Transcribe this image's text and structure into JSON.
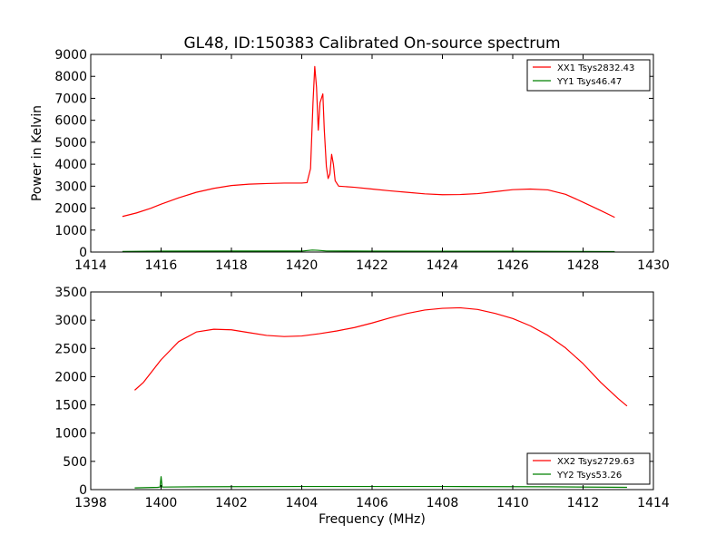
{
  "chart_data": [
    {
      "type": "line",
      "title": "GL48, ID:150383 Calibrated On-source spectrum",
      "xlabel": "",
      "ylabel": "Power in Kelvin",
      "xlim": [
        1414,
        1430
      ],
      "ylim": [
        0,
        9000
      ],
      "xticks": [
        "1414",
        "1416",
        "1418",
        "1420",
        "1422",
        "1424",
        "1426",
        "1428",
        "1430"
      ],
      "yticks": [
        "0",
        "1000",
        "2000",
        "3000",
        "4000",
        "5000",
        "6000",
        "7000",
        "8000",
        "9000"
      ],
      "legend_position": "top-right",
      "series": [
        {
          "name": "XX1 Tsys2832.43",
          "color": "#ff0000",
          "points": [
            [
              1414.9,
              1620
            ],
            [
              1415.3,
              1780
            ],
            [
              1415.7,
              1990
            ],
            [
              1416.0,
              2180
            ],
            [
              1416.5,
              2470
            ],
            [
              1417.0,
              2720
            ],
            [
              1417.5,
              2900
            ],
            [
              1418.0,
              3030
            ],
            [
              1418.5,
              3090
            ],
            [
              1419.0,
              3120
            ],
            [
              1419.5,
              3140
            ],
            [
              1420.0,
              3140
            ],
            [
              1420.15,
              3160
            ],
            [
              1420.25,
              3800
            ],
            [
              1420.32,
              6800
            ],
            [
              1420.37,
              8450
            ],
            [
              1420.42,
              7500
            ],
            [
              1420.47,
              5550
            ],
            [
              1420.52,
              6800
            ],
            [
              1420.57,
              7050
            ],
            [
              1420.6,
              7200
            ],
            [
              1420.64,
              5600
            ],
            [
              1420.7,
              3900
            ],
            [
              1420.75,
              3350
            ],
            [
              1420.8,
              3550
            ],
            [
              1420.85,
              4450
            ],
            [
              1420.9,
              4000
            ],
            [
              1420.95,
              3250
            ],
            [
              1421.05,
              3000
            ],
            [
              1421.5,
              2950
            ],
            [
              1422.0,
              2870
            ],
            [
              1422.5,
              2790
            ],
            [
              1423.0,
              2720
            ],
            [
              1423.5,
              2650
            ],
            [
              1424.0,
              2610
            ],
            [
              1424.5,
              2620
            ],
            [
              1425.0,
              2660
            ],
            [
              1425.5,
              2750
            ],
            [
              1426.0,
              2840
            ],
            [
              1426.5,
              2870
            ],
            [
              1427.0,
              2830
            ],
            [
              1427.5,
              2630
            ],
            [
              1428.0,
              2270
            ],
            [
              1428.5,
              1890
            ],
            [
              1428.9,
              1580
            ]
          ]
        },
        {
          "name": "YY1 Tsys46.47",
          "color": "#008000",
          "points": [
            [
              1414.9,
              25
            ],
            [
              1416.0,
              40
            ],
            [
              1418.0,
              45
            ],
            [
              1420.0,
              45
            ],
            [
              1420.3,
              90
            ],
            [
              1420.45,
              80
            ],
            [
              1420.7,
              50
            ],
            [
              1422.0,
              40
            ],
            [
              1424.0,
              35
            ],
            [
              1426.0,
              35
            ],
            [
              1428.0,
              25
            ],
            [
              1428.9,
              20
            ]
          ]
        }
      ]
    },
    {
      "type": "line",
      "title": "",
      "xlabel": "Frequency (MHz)",
      "ylabel": "",
      "xlim": [
        1398,
        1414
      ],
      "ylim": [
        0,
        3500
      ],
      "xticks": [
        "1398",
        "1400",
        "1402",
        "1404",
        "1406",
        "1408",
        "1410",
        "1412",
        "1414"
      ],
      "yticks": [
        "0",
        "500",
        "1000",
        "1500",
        "2000",
        "2500",
        "3000",
        "3500"
      ],
      "legend_position": "bottom-right",
      "series": [
        {
          "name": "XX2 Tsys2729.63",
          "color": "#ff0000",
          "points": [
            [
              1399.25,
              1760
            ],
            [
              1399.5,
              1900
            ],
            [
              1400.0,
              2300
            ],
            [
              1400.5,
              2620
            ],
            [
              1401.0,
              2790
            ],
            [
              1401.5,
              2840
            ],
            [
              1402.0,
              2830
            ],
            [
              1402.5,
              2780
            ],
            [
              1403.0,
              2730
            ],
            [
              1403.5,
              2710
            ],
            [
              1404.0,
              2720
            ],
            [
              1404.5,
              2760
            ],
            [
              1405.0,
              2810
            ],
            [
              1405.5,
              2870
            ],
            [
              1406.0,
              2950
            ],
            [
              1406.5,
              3040
            ],
            [
              1407.0,
              3120
            ],
            [
              1407.5,
              3180
            ],
            [
              1408.0,
              3210
            ],
            [
              1408.5,
              3220
            ],
            [
              1409.0,
              3190
            ],
            [
              1409.5,
              3120
            ],
            [
              1410.0,
              3030
            ],
            [
              1410.5,
              2900
            ],
            [
              1411.0,
              2730
            ],
            [
              1411.5,
              2510
            ],
            [
              1412.0,
              2230
            ],
            [
              1412.5,
              1900
            ],
            [
              1413.0,
              1610
            ],
            [
              1413.25,
              1480
            ]
          ]
        },
        {
          "name": "YY2 Tsys53.26",
          "color": "#008000",
          "points": [
            [
              1399.25,
              30
            ],
            [
              1399.9,
              40
            ],
            [
              1399.97,
              45
            ],
            [
              1400.0,
              230
            ],
            [
              1400.03,
              45
            ],
            [
              1401.0,
              50
            ],
            [
              1404.0,
              55
            ],
            [
              1408.0,
              55
            ],
            [
              1411.0,
              50
            ],
            [
              1413.25,
              40
            ]
          ]
        }
      ]
    }
  ]
}
